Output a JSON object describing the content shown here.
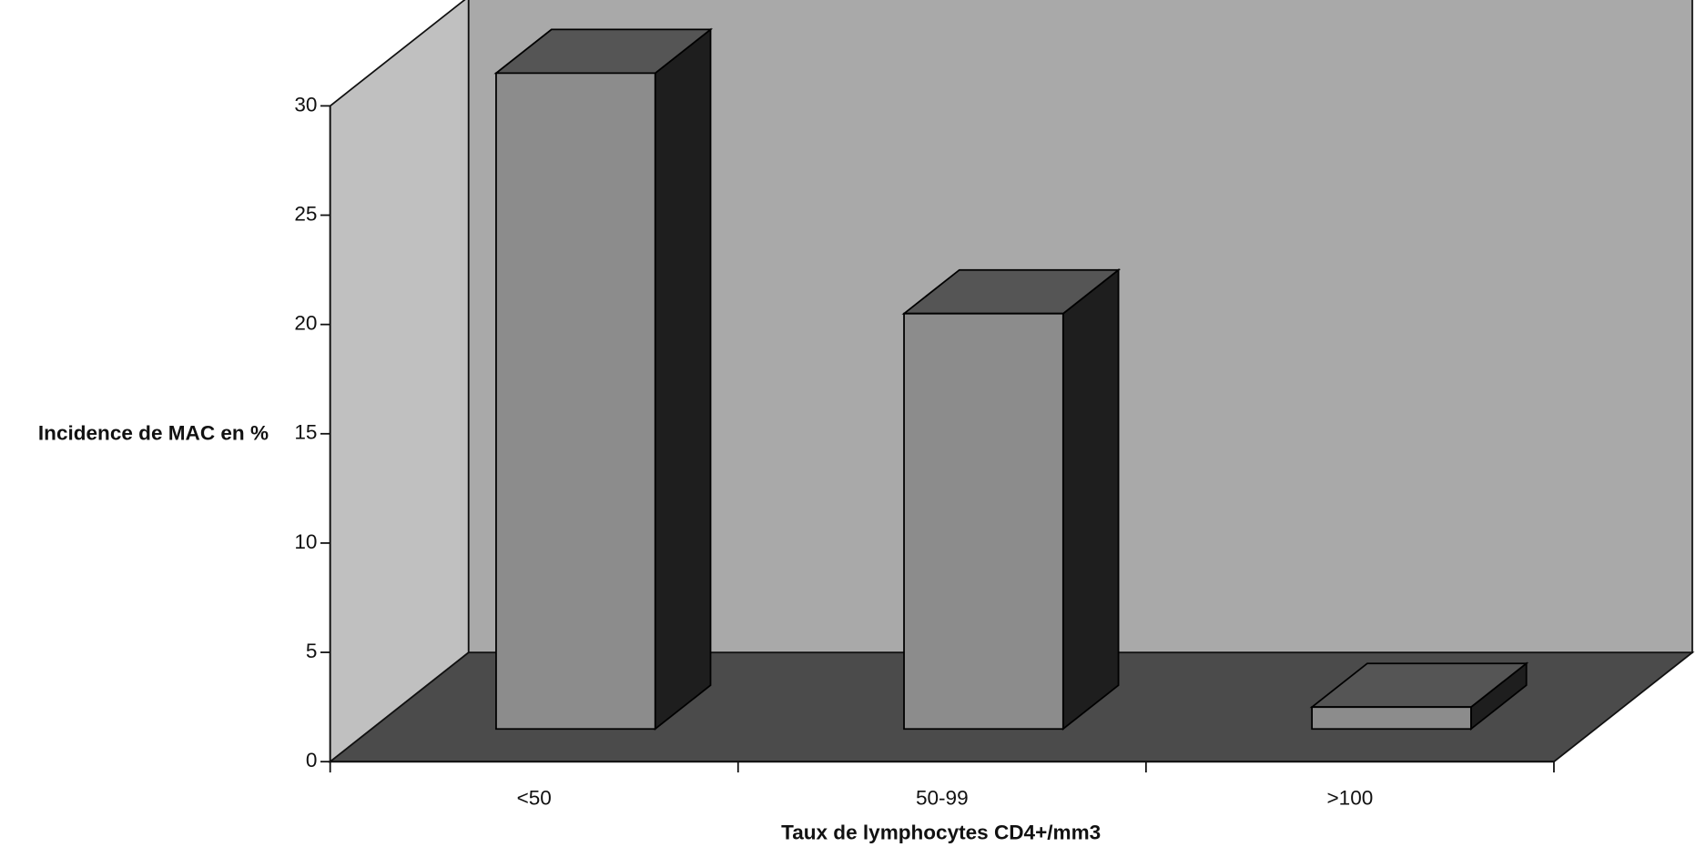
{
  "chart_data": {
    "type": "bar",
    "categories": [
      "<50",
      "50-99",
      ">100"
    ],
    "values": [
      30,
      19,
      1
    ],
    "x_label": "Taux de lymphocytes CD4+/mm3",
    "y_label": "Incidence de MAC en %",
    "ylim": [
      0,
      30
    ],
    "yticks": [
      0,
      5,
      10,
      15,
      20,
      25,
      30
    ],
    "color": "#8c8c8c"
  }
}
